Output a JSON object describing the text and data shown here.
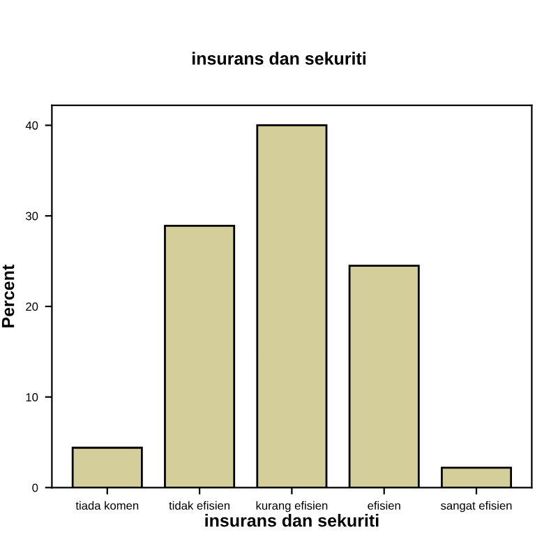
{
  "chart_data": {
    "type": "bar",
    "title": "insurans dan sekuriti",
    "xlabel": "insurans dan sekuriti",
    "ylabel": "Percent",
    "categories": [
      "tiada komen",
      "tidak efisien",
      "kurang efisien",
      "efisien",
      "sangat efisien"
    ],
    "values": [
      4.4,
      28.9,
      40.0,
      24.5,
      2.2
    ],
    "color": "#d3ce9a",
    "ylim": [
      0,
      42.2
    ],
    "yticks": [
      0,
      10,
      20,
      30,
      40
    ],
    "grid": false,
    "legend": false
  }
}
